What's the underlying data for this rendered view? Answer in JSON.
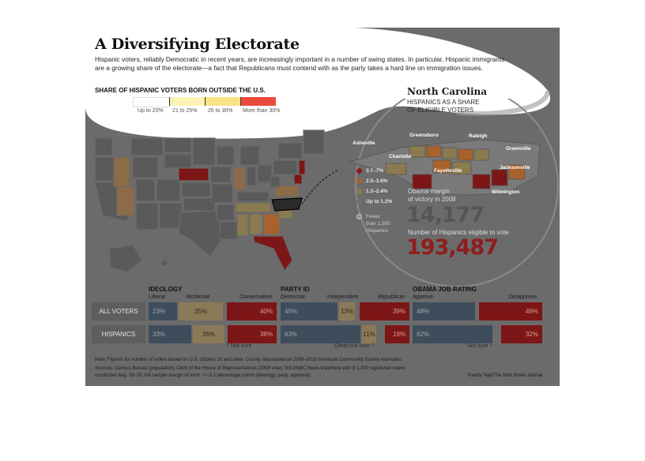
{
  "title": "A Diversifying Electorate",
  "subtitle_line1": "Hispanic voters, reliably Democratic in recent years, are increasingly important in a number of swing states. In particular, Hispanic immigrants",
  "subtitle_line2": "are a growing share of the electorate—a fact that Republicans must contend with as the party takes a hard line on immigration issues.",
  "legend": {
    "heading": "SHARE OF HISPANIC VOTERS BORN OUTSIDE THE U.S.",
    "items": [
      {
        "label": "Up to 20%",
        "color": "#ffffff"
      },
      {
        "label": "21 to 25%",
        "color": "#fdf3b5"
      },
      {
        "label": "26 to 30%",
        "color": "#f8e283"
      },
      {
        "label": "More than 30%",
        "color": "#ea4a3c"
      }
    ]
  },
  "nc": {
    "title": "North Carolina",
    "sub1": "HISPANICS AS A SHARE",
    "sub2": "OF ELIGIBLE VOTERS",
    "cities": [
      "Asheville",
      "Greensboro",
      "Raleigh",
      "Greenville",
      "Charlotte",
      "Fayetteville",
      "Jacksonville",
      "Wilmington"
    ],
    "legend": [
      {
        "label": "3.7–7%",
        "color": "#8e1d1d"
      },
      {
        "label": "2.5–3.6%",
        "color": "#a9622c"
      },
      {
        "label": "1.3–2.4%",
        "color": "#8a7a4f"
      },
      {
        "label": "Up to 1.2%",
        "color": "#707070"
      },
      {
        "label": "Fewer",
        "color": "#8a8a8a"
      }
    ],
    "fewer2": "than 1,000",
    "fewer3": "Hispanics",
    "obama_label1": "Obama margin",
    "obama_label2": "of victory in 2008",
    "obama_value": "14,177",
    "elig_label": "Number of Hispanics eligible to vote",
    "elig_value": "193,487"
  },
  "table": {
    "groups": [
      "IDEOLOGY",
      "PARTY ID",
      "OBAMA JOB RATING"
    ],
    "cols": {
      "ideology": [
        "Liberal",
        "Moderate",
        "Conservative"
      ],
      "party": [
        "Democrat",
        "Independent",
        "Republican"
      ],
      "obama": [
        "Approve",
        "Disapprove"
      ]
    },
    "rows": [
      {
        "label": "ALL VOTERS",
        "ideology": [
          "23%",
          "35%",
          "40%"
        ],
        "party": [
          "45%",
          "13%",
          "39%"
        ],
        "obama": [
          "48%",
          "49%"
        ]
      },
      {
        "label": "HISPANICS",
        "ideology": [
          "33%",
          "26%",
          "38%"
        ],
        "party": [
          "63%",
          "11%",
          "19%"
        ],
        "obama": [
          "62%",
          "32%"
        ]
      }
    ],
    "not_sure": "Not sure",
    "other_not_sure": "Other/not sure"
  },
  "notes": {
    "line1": "Note: Figures for number of voters based on U.S. citizens 18 and older. County data based on 2006–2010 American Community Survey estimates.",
    "line2": "Sources: Census Bureau (population); Clerk of the House of Representatives (2008 vote); WSJ/NBC News telephone poll of 1,000 registered voters",
    "line3": "conducted Aug. 16–20, full sample margin of error: +/–3.1 percentage points (ideology, party, approval)",
    "credit": "Randy Yeip/The Wall Street Journal"
  }
}
